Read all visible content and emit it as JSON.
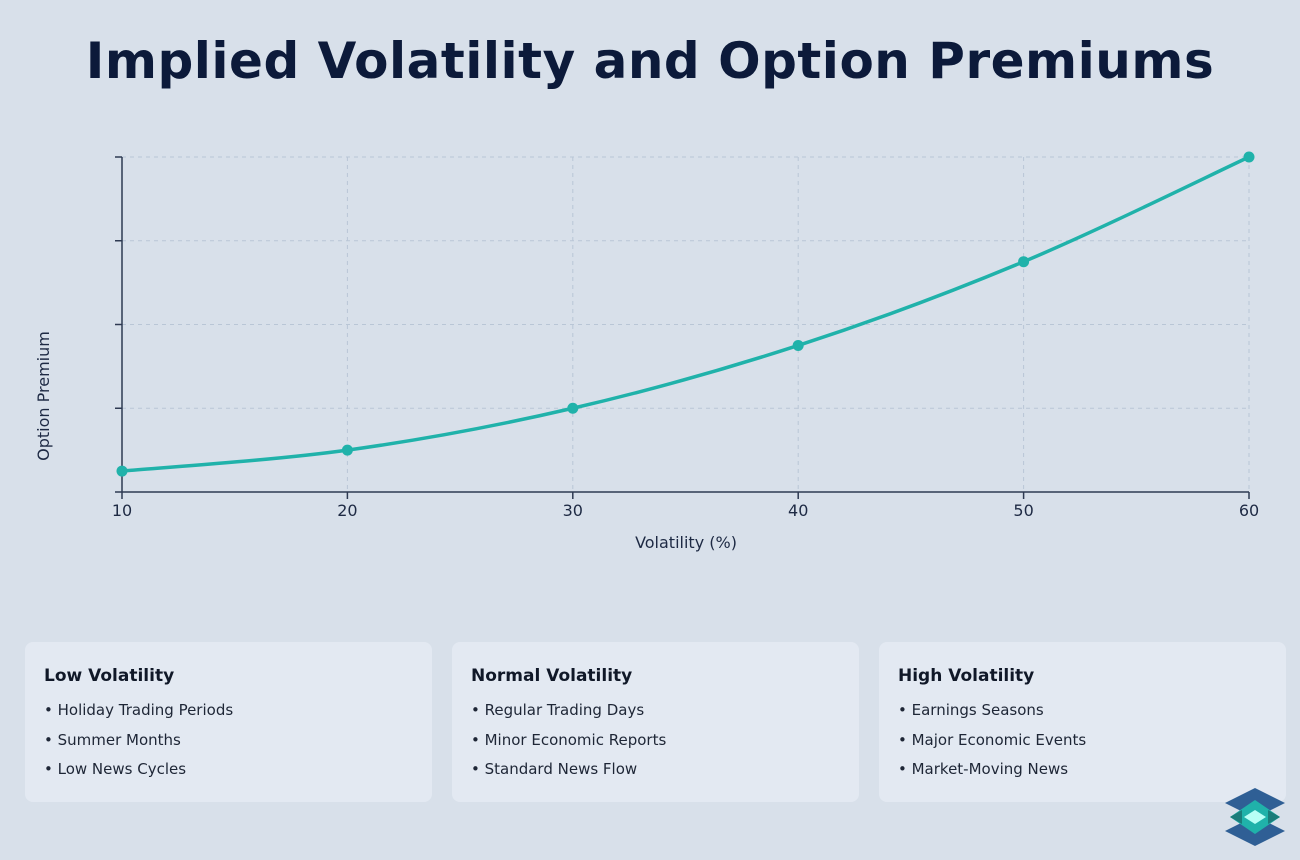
{
  "title": "Implied Volatility and Option Premiums",
  "chart_data": {
    "type": "line",
    "title": "Implied Volatility and Option Premiums",
    "xlabel": "Volatility (%)",
    "ylabel": "Option Premium",
    "x": [
      10,
      20,
      30,
      40,
      50,
      60
    ],
    "values": [
      5,
      10,
      20,
      35,
      55,
      80
    ],
    "xlim": [
      10,
      60
    ],
    "ylim": [
      0,
      80
    ],
    "y_ticks": [
      0,
      20,
      40,
      60,
      80
    ],
    "y_tick_labels_shown": false,
    "x_tick_labels": [
      "10",
      "20",
      "30",
      "40",
      "50",
      "60"
    ],
    "grid": true,
    "line_color": "#20b2aa",
    "smooth": true
  },
  "cards": [
    {
      "title": "Low Volatility",
      "items": [
        "• Holiday Trading Periods",
        "• Summer Months",
        "• Low News Cycles"
      ]
    },
    {
      "title": "Normal Volatility",
      "items": [
        "• Regular Trading Days",
        "• Minor Economic Reports",
        "• Standard News Flow"
      ]
    },
    {
      "title": "High Volatility",
      "items": [
        "• Earnings Seasons",
        "• Major Economic Events",
        "• Market-Moving News"
      ]
    }
  ],
  "logo": {
    "icon": "layers-icon",
    "colors": [
      "#2f5f95",
      "#20b2aa",
      "#1b7c7a",
      "#b8fff6"
    ]
  }
}
